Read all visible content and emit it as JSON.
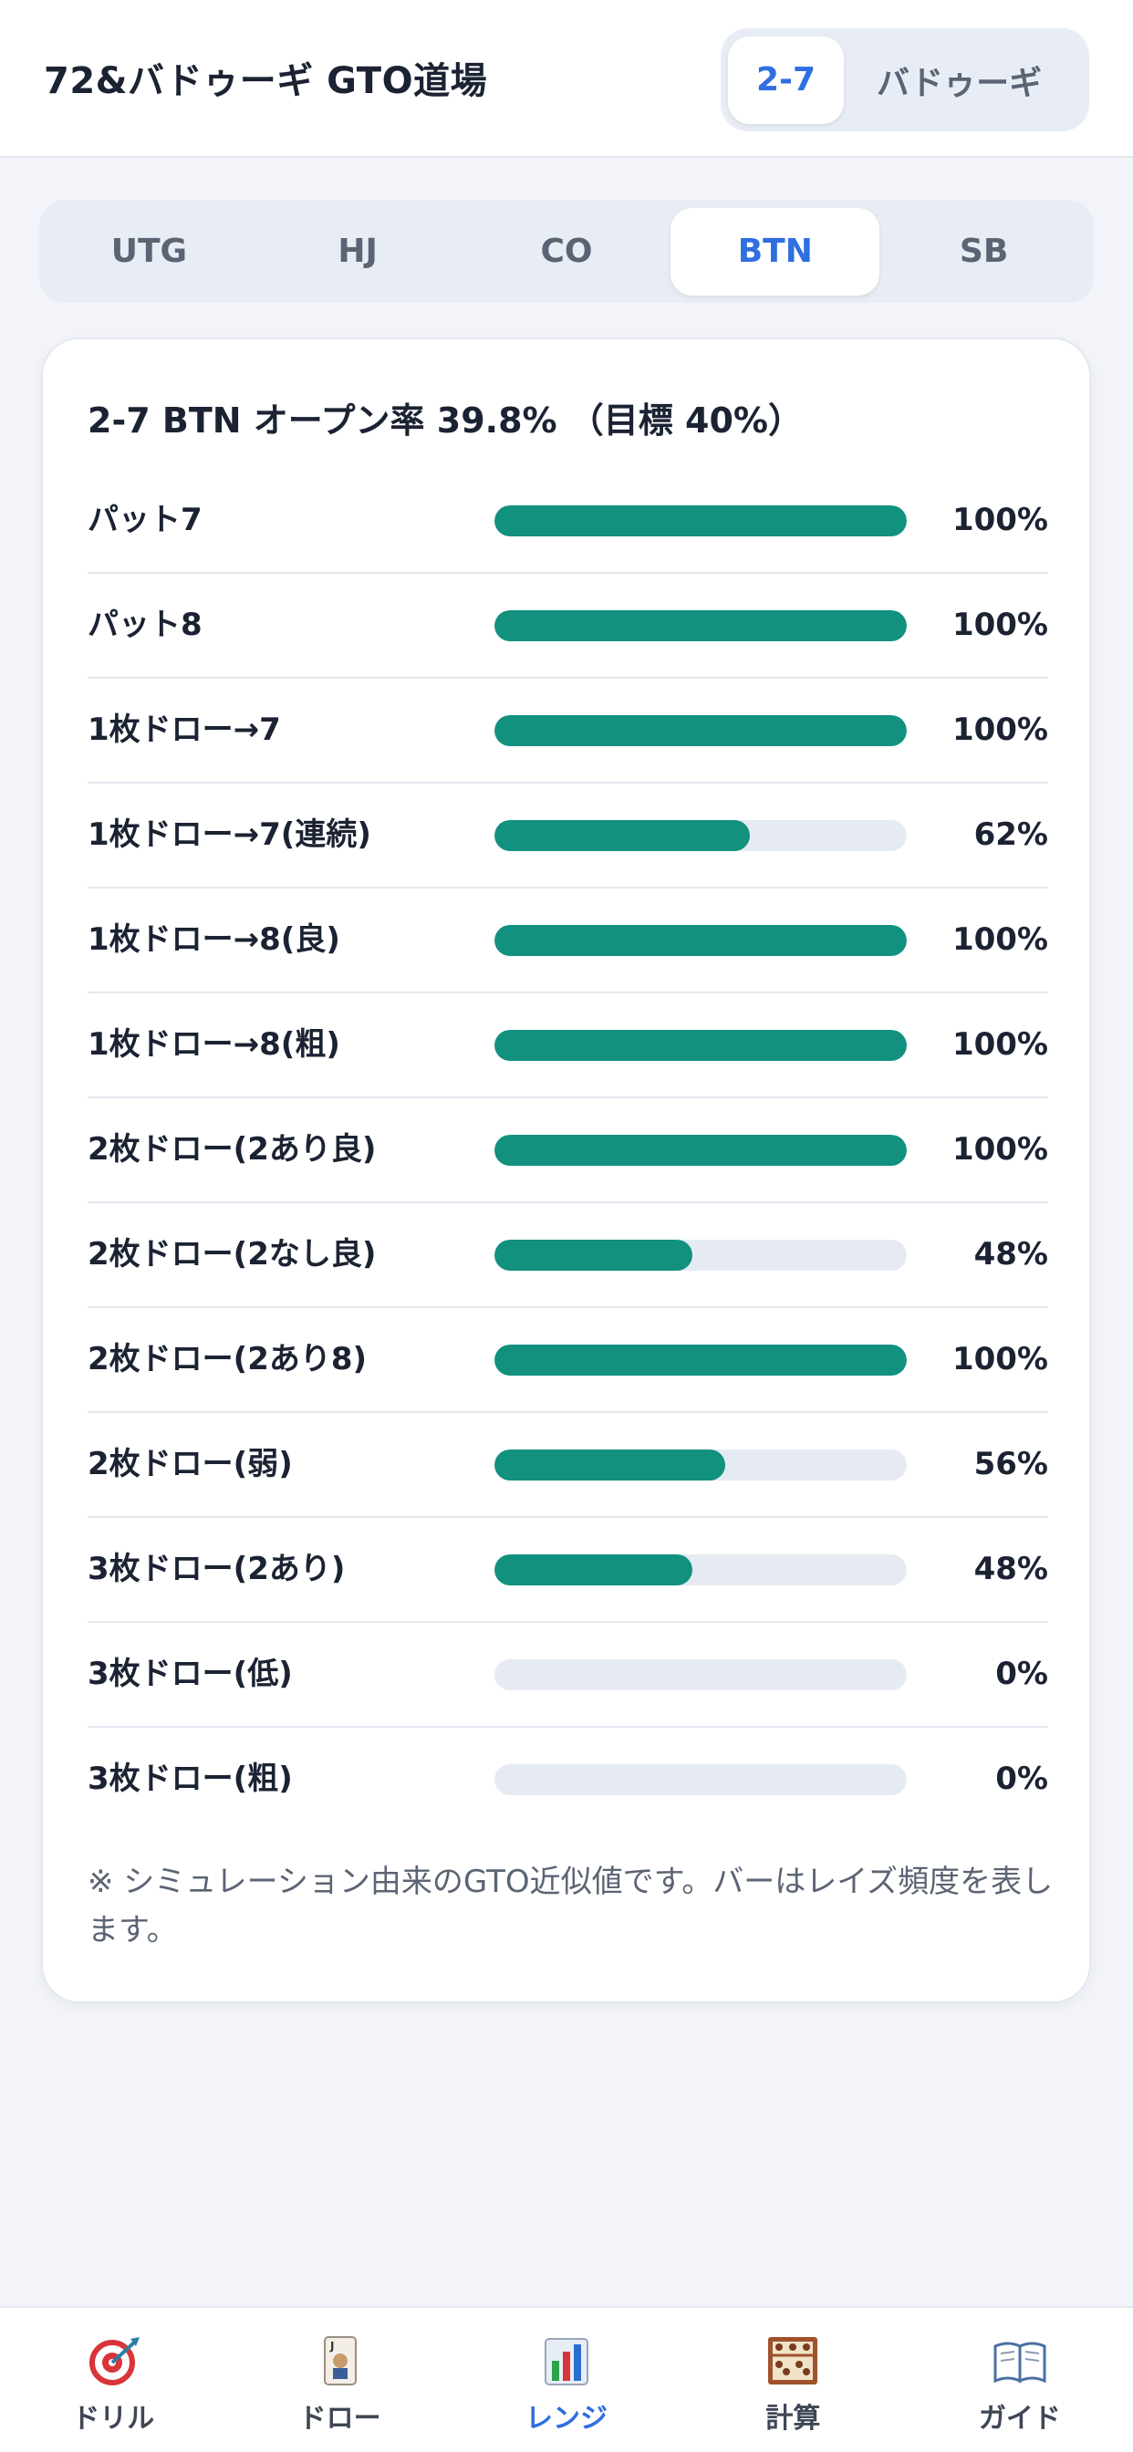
{
  "header": {
    "title": "72&バドゥーギ GTO道場",
    "game_toggle": [
      "2-7",
      "バドゥーギ"
    ],
    "active_index": 0
  },
  "positions": {
    "items": [
      "UTG",
      "HJ",
      "CO",
      "BTN",
      "SB"
    ],
    "active_index": 3
  },
  "card": {
    "title": "2-7 BTN オープン率 39.8% （目標 40%）",
    "rows": [
      {
        "label": "パット7",
        "value": 100,
        "value_label": "100%"
      },
      {
        "label": "パット8",
        "value": 100,
        "value_label": "100%"
      },
      {
        "label": "1枚ドロー→7",
        "value": 100,
        "value_label": "100%"
      },
      {
        "label": "1枚ドロー→7(連続)",
        "value": 62,
        "value_label": "62%"
      },
      {
        "label": "1枚ドロー→8(良)",
        "value": 100,
        "value_label": "100%"
      },
      {
        "label": "1枚ドロー→8(粗)",
        "value": 100,
        "value_label": "100%"
      },
      {
        "label": "2枚ドロー(2あり良)",
        "value": 100,
        "value_label": "100%"
      },
      {
        "label": "2枚ドロー(2なし良)",
        "value": 48,
        "value_label": "48%"
      },
      {
        "label": "2枚ドロー(2あり8)",
        "value": 100,
        "value_label": "100%"
      },
      {
        "label": "2枚ドロー(弱)",
        "value": 56,
        "value_label": "56%"
      },
      {
        "label": "3枚ドロー(2あり)",
        "value": 48,
        "value_label": "48%"
      },
      {
        "label": "3枚ドロー(低)",
        "value": 0,
        "value_label": "0%"
      },
      {
        "label": "3枚ドロー(粗)",
        "value": 0,
        "value_label": "0%"
      }
    ],
    "note": "※ シミュレーション由来のGTO近似値です。バーはレイズ頻度を表します。"
  },
  "nav": {
    "items": [
      "ドリル",
      "ドロー",
      "レンジ",
      "計算",
      "ガイド"
    ],
    "active_index": 2
  }
}
